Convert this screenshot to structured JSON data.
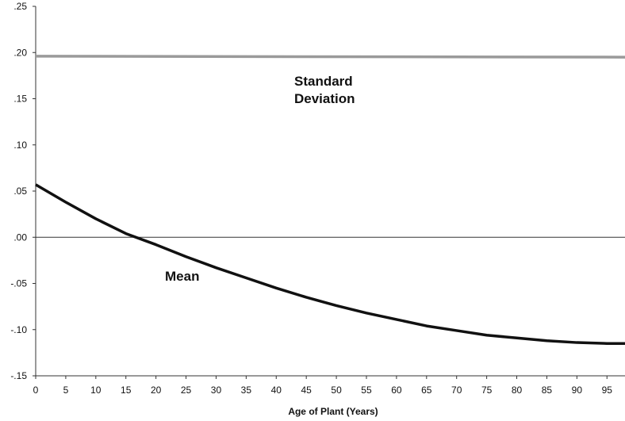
{
  "chart_data": {
    "type": "line",
    "title": "",
    "xlabel": "Age of Plant (Years)",
    "ylabel": "",
    "xlim": [
      0,
      98
    ],
    "ylim": [
      -0.15,
      0.25
    ],
    "x_ticks": [
      0,
      5,
      10,
      15,
      20,
      25,
      30,
      35,
      40,
      45,
      50,
      55,
      60,
      65,
      70,
      75,
      80,
      85,
      90,
      95
    ],
    "x_tick_labels": [
      "0",
      "5",
      "10",
      "15",
      "20",
      "25",
      "30",
      "35",
      "40",
      "45",
      "50",
      "55",
      "60",
      "65",
      "70",
      "75",
      "80",
      "85",
      "90",
      "95"
    ],
    "y_ticks": [
      -0.15,
      -0.1,
      -0.05,
      0.0,
      0.05,
      0.1,
      0.15,
      0.2,
      0.25
    ],
    "y_tick_labels": [
      "-.15",
      "-.10",
      "-.05",
      ".00",
      ".05",
      ".10",
      ".15",
      ".20",
      ".25"
    ],
    "grid": false,
    "reference_line_y": 0,
    "series": [
      {
        "name": "Standard Deviation",
        "label_lines": [
          "Standard",
          "Deviation"
        ],
        "color": "#9a9a9a",
        "x": [
          0,
          98
        ],
        "y": [
          0.196,
          0.195
        ]
      },
      {
        "name": "Mean",
        "label_lines": [
          "Mean"
        ],
        "color": "#111111",
        "x": [
          0,
          5,
          10,
          15,
          20,
          25,
          30,
          35,
          40,
          45,
          50,
          55,
          60,
          65,
          70,
          75,
          80,
          85,
          90,
          95,
          98
        ],
        "y": [
          0.057,
          0.038,
          0.02,
          0.004,
          -0.008,
          -0.021,
          -0.033,
          -0.044,
          -0.055,
          -0.065,
          -0.074,
          -0.082,
          -0.089,
          -0.096,
          -0.101,
          -0.106,
          -0.109,
          -0.112,
          -0.114,
          -0.115,
          -0.115
        ]
      }
    ]
  }
}
